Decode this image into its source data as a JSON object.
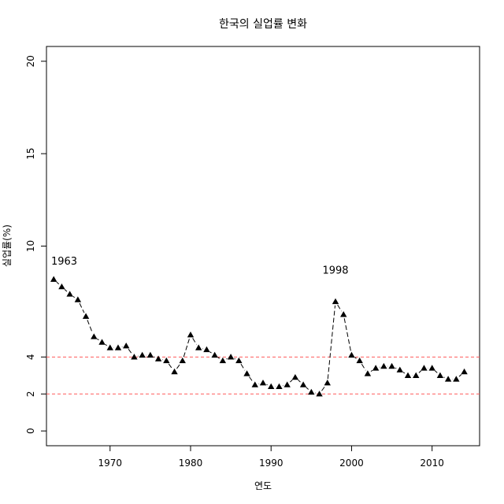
{
  "chart_data": {
    "type": "scatter",
    "title": "한국의 실업률 변화",
    "xlabel": "연도",
    "ylabel": "실업률(%)",
    "xlim": [
      1962.1,
      2015.9
    ],
    "ylim": [
      -0.8,
      20.8
    ],
    "x_ticks": [
      1970,
      1980,
      1990,
      2000,
      2010
    ],
    "y_ticks": [
      0,
      2,
      4,
      10,
      15,
      20
    ],
    "marker": "filled-triangle",
    "connector": "dashed-line",
    "x": [
      1963,
      1964,
      1965,
      1966,
      1967,
      1968,
      1969,
      1970,
      1971,
      1972,
      1973,
      1974,
      1975,
      1976,
      1977,
      1978,
      1979,
      1980,
      1981,
      1982,
      1983,
      1984,
      1985,
      1986,
      1987,
      1988,
      1989,
      1990,
      1991,
      1992,
      1993,
      1994,
      1995,
      1996,
      1997,
      1998,
      1999,
      2000,
      2001,
      2002,
      2003,
      2004,
      2005,
      2006,
      2007,
      2008,
      2009,
      2010,
      2011,
      2012,
      2013,
      2014
    ],
    "y": [
      8.2,
      7.8,
      7.4,
      7.1,
      6.2,
      5.1,
      4.8,
      4.5,
      4.5,
      4.6,
      4.0,
      4.1,
      4.1,
      3.9,
      3.8,
      3.2,
      3.8,
      5.2,
      4.5,
      4.4,
      4.1,
      3.8,
      4.0,
      3.8,
      3.1,
      2.5,
      2.6,
      2.4,
      2.4,
      2.5,
      2.9,
      2.5,
      2.1,
      2.0,
      2.6,
      7.0,
      6.3,
      4.1,
      3.8,
      3.1,
      3.4,
      3.5,
      3.5,
      3.3,
      3.0,
      3.0,
      3.4,
      3.4,
      3.0,
      2.8,
      2.8,
      3.2
    ],
    "reference_lines": [
      {
        "y": 4,
        "style": "dashed",
        "color": "#ff5a5a"
      },
      {
        "y": 2,
        "style": "dashed",
        "color": "#ff5a5a"
      }
    ],
    "annotations": [
      {
        "text": "1963",
        "x": 1964.3,
        "y": 9.0
      },
      {
        "text": "1998",
        "x": 1998.0,
        "y": 8.5
      }
    ]
  }
}
